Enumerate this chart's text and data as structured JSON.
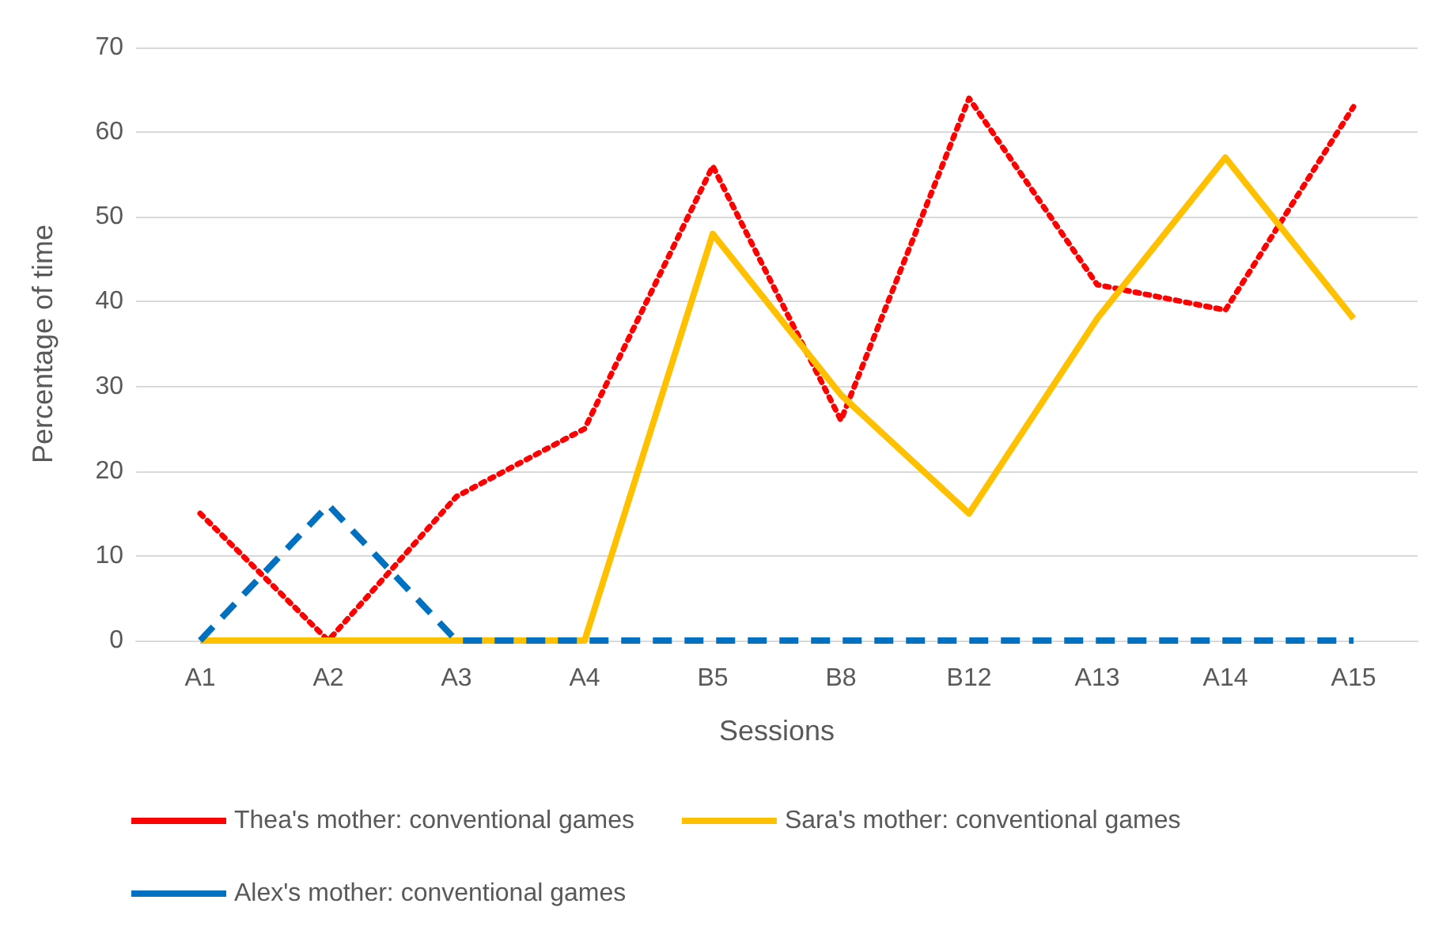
{
  "chart_data": {
    "type": "line",
    "xlabel": "Sessions",
    "ylabel": "Percentage of time",
    "categories": [
      "A1",
      "A2",
      "A3",
      "A4",
      "B5",
      "B8",
      "B12",
      "A13",
      "A14",
      "A15"
    ],
    "series": [
      {
        "name": "Thea's mother: conventional games",
        "color": "#ff0000",
        "line_style": "dotted",
        "values": [
          15,
          0,
          17,
          25,
          56,
          26,
          64,
          42,
          39,
          63
        ]
      },
      {
        "name": "Sara's mother: conventional games",
        "color": "#ffc000",
        "line_style": "solid",
        "values": [
          0,
          0,
          0,
          0,
          48,
          29,
          15,
          38,
          57,
          38
        ]
      },
      {
        "name": "Alex's mother: conventional games",
        "color": "#0070c0",
        "line_style": "dashed",
        "values": [
          0,
          16,
          0,
          0,
          0,
          0,
          0,
          0,
          0,
          0
        ]
      }
    ],
    "ylim": [
      0,
      70
    ],
    "yticks": [
      0,
      10,
      20,
      30,
      40,
      50,
      60,
      70
    ],
    "grid": "y",
    "legend": "bottom"
  }
}
